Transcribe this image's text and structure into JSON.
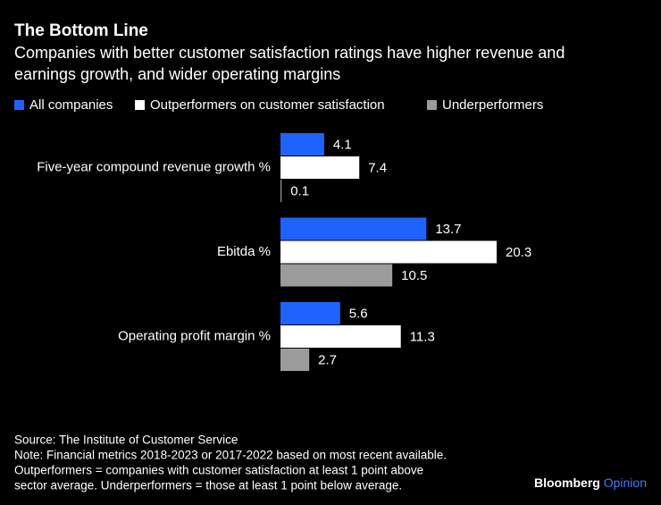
{
  "chart_data": {
    "type": "bar",
    "orientation": "horizontal",
    "title": "The Bottom Line",
    "subtitle": [
      "Companies with better customer satisfaction ratings have higher revenue and",
      "earnings growth, and wider operating margins"
    ],
    "categories": [
      "Five-year compound revenue growth %",
      "Ebitda %",
      "Operating profit margin %"
    ],
    "series": [
      {
        "name": "All companies",
        "color": "#1f63ff",
        "values": [
          4.1,
          13.7,
          5.6
        ]
      },
      {
        "name": "Outperformers on customer satisfaction",
        "color": "#ffffff",
        "values": [
          7.4,
          20.3,
          11.3
        ]
      },
      {
        "name": "Underperformers",
        "color": "#9b9b9b",
        "values": [
          0.1,
          10.5,
          2.7
        ]
      }
    ],
    "source": "Source: The Institute of Customer Service",
    "notes": [
      "Note: Financial metrics 2018-2023 or 2017-2022 based on most recent available.",
      "Outperformers = companies with customer satisfaction at least 1 point above",
      "sector average. Underperformers = those at least 1 point below average."
    ]
  },
  "branding": [
    "Bloomberg",
    "Opinion"
  ]
}
